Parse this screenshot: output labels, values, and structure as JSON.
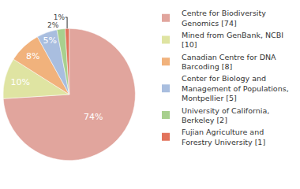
{
  "chart_data": {
    "type": "pie",
    "categories": [
      "Centre for Biodiversity Genomics [74]",
      "Mined from GenBank, NCBI [10]",
      "Canadian Centre for DNA Barcoding [8]",
      "Center for Biology and Management of Populations, Montpellier [5]",
      "University of California, Berkeley [2]",
      "Fujian Agriculture and Forestry University [1]"
    ],
    "values": [
      74,
      10,
      8,
      5,
      2,
      1
    ],
    "value_labels": [
      "74%",
      "10%",
      "8%",
      "5%",
      "2%",
      "1%"
    ],
    "colors": [
      "#e1a59d",
      "#dfe4a2",
      "#f1b27c",
      "#a9bedf",
      "#a8d08e",
      "#e2735c"
    ],
    "data_labels": true,
    "legend": "right"
  }
}
